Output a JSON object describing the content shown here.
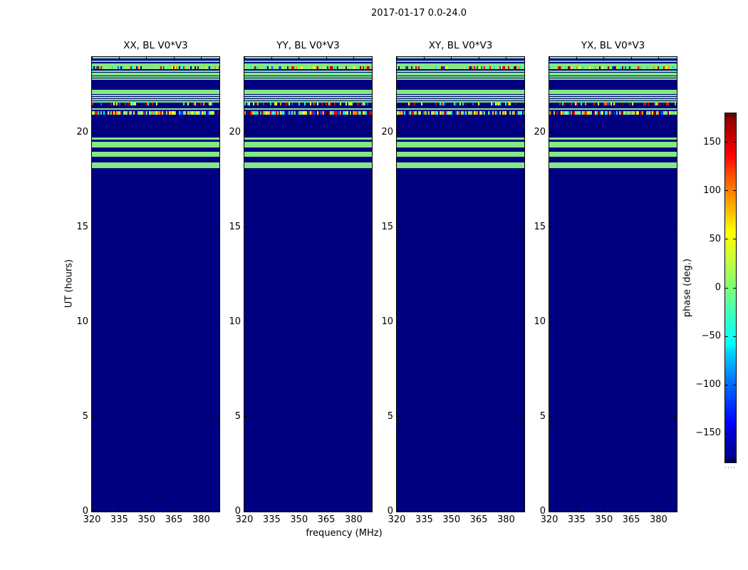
{
  "figure": {
    "suptitle": "2017-01-17 0.0-24.0",
    "xlabel": "frequency (MHz)",
    "ylabel": "UT (hours)",
    "colorbar_label": "phase (deg.)"
  },
  "chart_data": {
    "type": "heatmap",
    "title": "2017-01-17 0.0-24.0",
    "xlabel": "frequency (MHz)",
    "ylabel": "UT (hours)",
    "panels": [
      {
        "title": "XX, BL V0*V3"
      },
      {
        "title": "YY, BL V0*V3"
      },
      {
        "title": "XY, BL V0*V3"
      },
      {
        "title": "YX, BL V0*V3"
      }
    ],
    "x_axis": {
      "range": [
        320,
        390
      ],
      "ticks": [
        320,
        335,
        350,
        365,
        380
      ],
      "unit": "MHz"
    },
    "y_axis": {
      "range": [
        0,
        24
      ],
      "ticks": [
        0,
        5,
        10,
        15,
        20
      ],
      "unit": "hours"
    },
    "colorbar": {
      "label": "phase (deg.)",
      "range_deg": [
        -180,
        180
      ],
      "ticks": [
        150,
        100,
        50,
        0,
        -50,
        -100,
        -150
      ],
      "colormap": "jet"
    },
    "background_phase_deg": -180,
    "colors": {
      "background": "#000080",
      "band_green": "#84e884",
      "band_pale": "#9fe8c3",
      "band_cyan": "#4cd9c9"
    },
    "bands": [
      {
        "ut_start": 23.89,
        "ut_end": 24.0,
        "kind": "pale"
      },
      {
        "ut_start": 23.7,
        "ut_end": 23.81,
        "kind": "cyan"
      },
      {
        "ut_start": 23.49,
        "ut_end": 23.64,
        "kind": "green"
      },
      {
        "ut_start": 23.35,
        "ut_end": 23.49,
        "kind": "noise_green"
      },
      {
        "ut_start": 23.19,
        "ut_end": 23.27,
        "kind": "green"
      },
      {
        "ut_start": 23.09,
        "ut_end": 23.17,
        "kind": "green"
      },
      {
        "ut_start": 22.99,
        "ut_end": 23.07,
        "kind": "green"
      },
      {
        "ut_start": 22.89,
        "ut_end": 22.97,
        "kind": "green"
      },
      {
        "ut_start": 22.78,
        "ut_end": 22.86,
        "kind": "green"
      },
      {
        "ut_start": 22.01,
        "ut_end": 22.26,
        "kind": "green"
      },
      {
        "ut_start": 21.9,
        "ut_end": 21.98,
        "kind": "green"
      },
      {
        "ut_start": 21.8,
        "ut_end": 21.88,
        "kind": "green"
      },
      {
        "ut_start": 21.69,
        "ut_end": 21.77,
        "kind": "green"
      },
      {
        "ut_start": 21.58,
        "ut_end": 21.66,
        "kind": "green"
      },
      {
        "ut_start": 21.43,
        "ut_end": 21.56,
        "kind": "noise_sparse"
      },
      {
        "ut_start": 21.18,
        "ut_end": 21.27,
        "kind": "green"
      },
      {
        "ut_start": 20.95,
        "ut_end": 21.14,
        "kind": "noise_dense"
      },
      {
        "ut_start": 19.6,
        "ut_end": 19.74,
        "kind": "green"
      },
      {
        "ut_start": 19.22,
        "ut_end": 19.49,
        "kind": "green"
      },
      {
        "ut_start": 18.71,
        "ut_end": 18.99,
        "kind": "green"
      },
      {
        "ut_start": 18.13,
        "ut_end": 18.43,
        "kind": "green"
      }
    ]
  }
}
